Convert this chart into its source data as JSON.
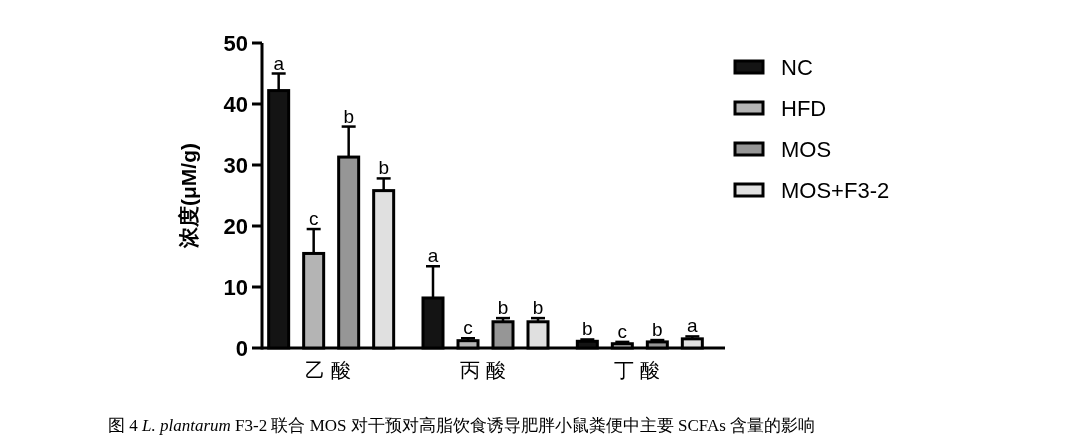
{
  "chart_data": {
    "type": "bar",
    "ylabel": "浓度(μM/g)",
    "categories": [
      "乙酸",
      "丙酸",
      "丁酸"
    ],
    "ylim": [
      0,
      50
    ],
    "yticks": [
      0,
      10,
      20,
      30,
      40,
      50
    ],
    "legend": "top right",
    "grid": false,
    "series": [
      {
        "name": "NC",
        "color": "#141414",
        "values": [
          42.2,
          8.2,
          1.1
        ],
        "errors": [
          2.8,
          5.2,
          0.3
        ],
        "value_labels": [
          "a",
          "a",
          "b"
        ]
      },
      {
        "name": "HFD",
        "color": "#b4b4b4",
        "values": [
          15.5,
          1.2,
          0.7
        ],
        "errors": [
          4.0,
          0.4,
          0.3
        ],
        "value_labels": [
          "c",
          "c",
          "c"
        ]
      },
      {
        "name": "MOS",
        "color": "#969696",
        "values": [
          31.3,
          4.3,
          1.0
        ],
        "errors": [
          5.0,
          0.6,
          0.3
        ],
        "value_labels": [
          "b",
          "b",
          "b"
        ]
      },
      {
        "name": "MOS+F3-2",
        "color": "#e0e0e0",
        "values": [
          25.8,
          4.3,
          1.5
        ],
        "errors": [
          2.0,
          0.6,
          0.4
        ],
        "value_labels": [
          "b",
          "b",
          "a"
        ]
      }
    ],
    "annotations": [
      "图 4 *L. plantarum* F3-2 联合 MOS 对干预对高脂饮食诱导肥胖小鼠粪便中主要 SCFAs 含量的影响"
    ]
  }
}
